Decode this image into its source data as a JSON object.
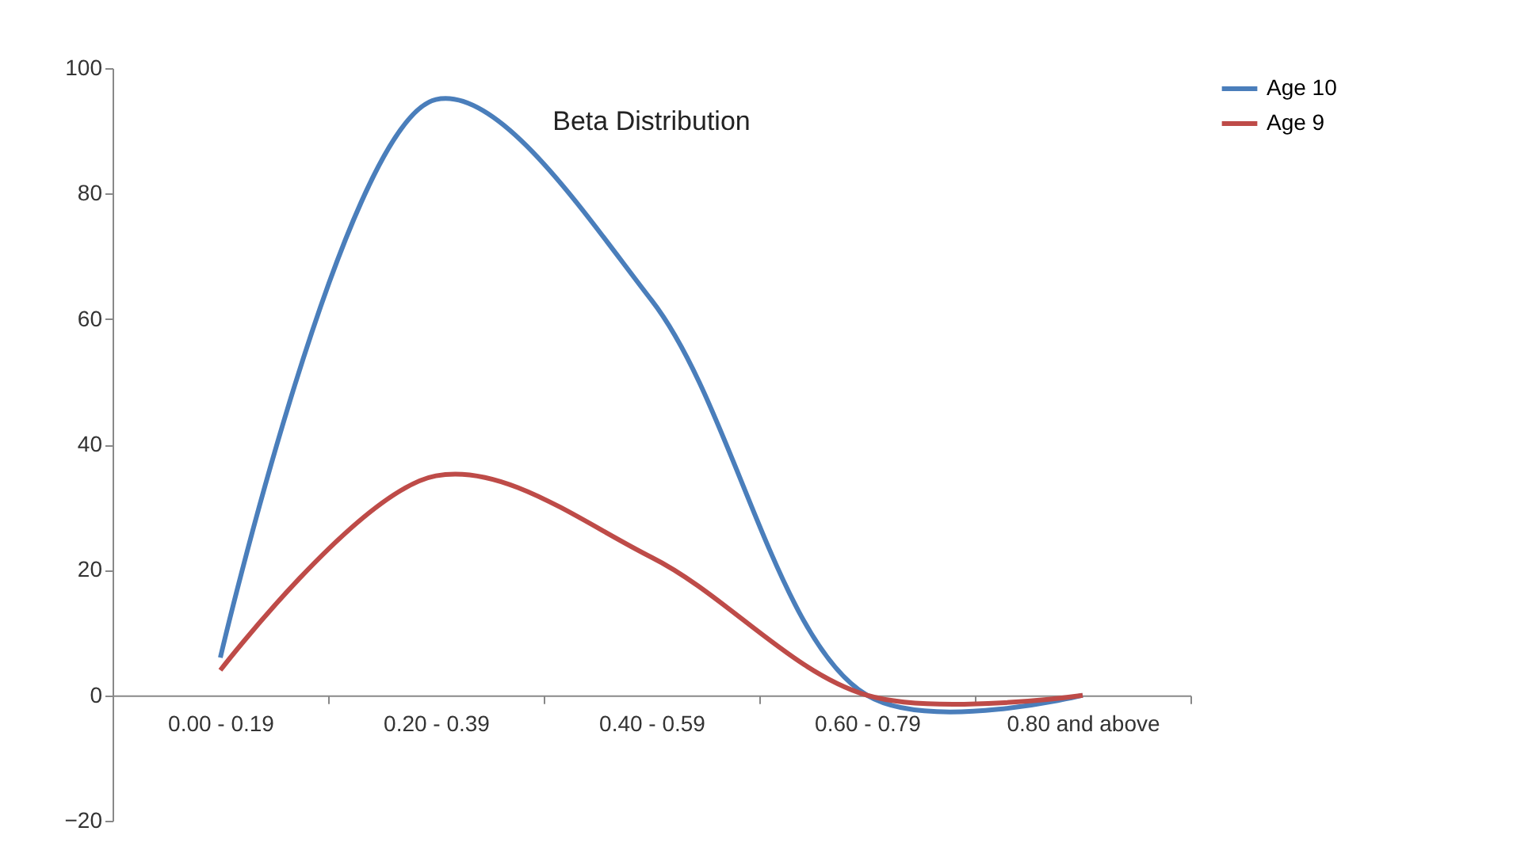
{
  "chart_data": {
    "type": "line",
    "title": "Beta Distribution",
    "categories": [
      "0.00 - 0.19",
      "0.20 - 0.39",
      "0.40 - 0.59",
      "0.60 - 0.79",
      "0.80 and above"
    ],
    "series": [
      {
        "name": "Age 10",
        "color": "#4a7ebb",
        "values": [
          6,
          95,
          63,
          0,
          0
        ]
      },
      {
        "name": "Age 9",
        "color": "#be4b48",
        "values": [
          4,
          35,
          22,
          0,
          0
        ]
      }
    ],
    "ylim": [
      -20,
      100
    ],
    "yticks": [
      -20,
      0,
      20,
      40,
      60,
      80,
      100
    ],
    "grid": false,
    "legend": "right",
    "marker": "none",
    "line_style": "solid"
  }
}
